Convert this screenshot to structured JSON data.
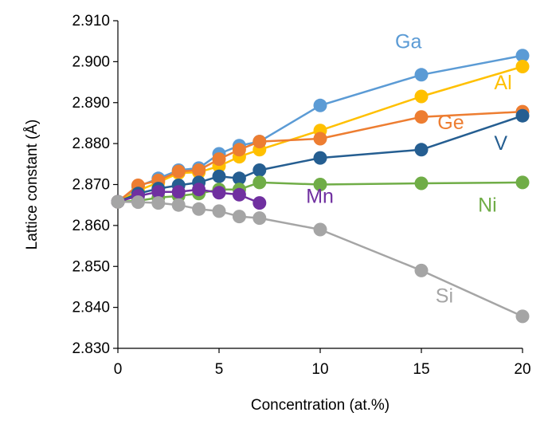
{
  "chart_data": {
    "type": "line",
    "title": "",
    "xlabel": "Concentration (at.%)",
    "ylabel": "Lattice constant (Å)",
    "xlim": [
      0,
      20
    ],
    "ylim": [
      2.83,
      2.91
    ],
    "x_ticks": [
      "0",
      "5",
      "10",
      "15",
      "20"
    ],
    "y_ticks": [
      "2.830",
      "2.840",
      "2.850",
      "2.860",
      "2.870",
      "2.880",
      "2.890",
      "2.900",
      "2.910"
    ],
    "grid": false,
    "legend": "none",
    "series": [
      {
        "name": "Ga",
        "color": "#5B9BD5",
        "x": [
          0,
          1,
          2,
          3,
          4,
          5,
          6,
          7,
          10,
          15,
          20
        ],
        "y": [
          2.8658,
          2.8695,
          2.8715,
          2.8735,
          2.874,
          2.8775,
          2.8795,
          2.8805,
          2.8893,
          2.8968,
          2.9015
        ]
      },
      {
        "name": "Al",
        "color": "#FFC000",
        "x": [
          0,
          1,
          2,
          3,
          4,
          5,
          6,
          7,
          10,
          15,
          20
        ],
        "y": [
          2.8658,
          2.8685,
          2.8705,
          2.8728,
          2.873,
          2.8745,
          2.8768,
          2.8785,
          2.8832,
          2.8915,
          2.8988
        ]
      },
      {
        "name": "Ge",
        "color": "#ED7D31",
        "x": [
          0,
          1,
          2,
          3,
          4,
          5,
          6,
          7,
          10,
          15,
          20
        ],
        "y": [
          2.8658,
          2.8698,
          2.871,
          2.8732,
          2.8735,
          2.8762,
          2.8785,
          2.8805,
          2.8812,
          2.8865,
          2.8878
        ]
      },
      {
        "name": "V",
        "color": "#255E91",
        "x": [
          0,
          1,
          2,
          3,
          4,
          5,
          6,
          7,
          10,
          15,
          20
        ],
        "y": [
          2.8658,
          2.8678,
          2.869,
          2.8698,
          2.8705,
          2.872,
          2.8715,
          2.8735,
          2.8765,
          2.8785,
          2.8868
        ]
      },
      {
        "name": "Ni",
        "color": "#70AD47",
        "x": [
          0,
          1,
          2,
          3,
          4,
          5,
          6,
          7,
          10,
          15,
          20
        ],
        "y": [
          2.8658,
          2.866,
          2.8668,
          2.8672,
          2.8678,
          2.8688,
          2.8688,
          2.8705,
          2.87,
          2.8703,
          2.8705
        ]
      },
      {
        "name": "Mn",
        "color": "#7030A0",
        "x": [
          0,
          1,
          2,
          3,
          4,
          5,
          6,
          7
        ],
        "y": [
          2.8658,
          2.8672,
          2.8682,
          2.8682,
          2.8688,
          2.868,
          2.8675,
          2.8655
        ]
      },
      {
        "name": "Si",
        "color": "#A5A5A5",
        "x": [
          0,
          1,
          2,
          3,
          4,
          5,
          6,
          7,
          10,
          15,
          20
        ],
        "y": [
          2.8658,
          2.8657,
          2.8655,
          2.865,
          2.864,
          2.8635,
          2.8622,
          2.8618,
          2.859,
          2.849,
          2.8378
        ]
      }
    ],
    "annotations": [
      {
        "text": "Ga",
        "series": "Ga",
        "x": 13.7,
        "y": 2.9033
      },
      {
        "text": "Al",
        "series": "Al",
        "x": 18.6,
        "y": 2.8933
      },
      {
        "text": "Ge",
        "series": "Ge",
        "x": 15.8,
        "y": 2.8835
      },
      {
        "text": "V",
        "series": "V",
        "x": 18.6,
        "y": 2.8785
      },
      {
        "text": "Mn",
        "series": "Mn",
        "x": 9.3,
        "y": 2.8655
      },
      {
        "text": "Ni",
        "series": "Ni",
        "x": 17.8,
        "y": 2.8634
      },
      {
        "text": "Si",
        "series": "Si",
        "x": 15.7,
        "y": 2.8412
      }
    ]
  }
}
